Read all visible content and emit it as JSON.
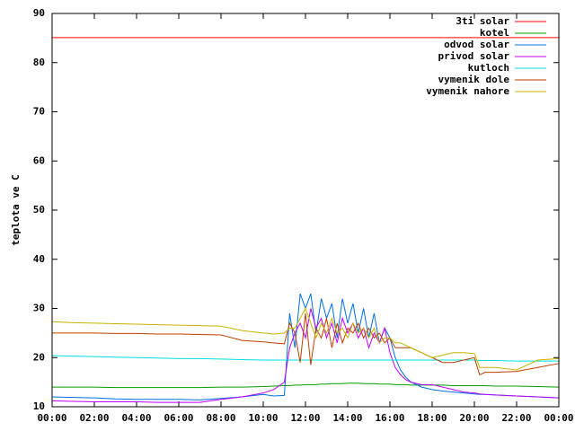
{
  "chart_data": {
    "type": "line",
    "ylabel": "teplota ve C",
    "x": [
      0,
      1,
      2,
      3,
      4,
      5,
      6,
      7,
      8,
      9,
      10,
      10.5,
      11,
      11.25,
      11.5,
      11.75,
      12,
      12.25,
      12.5,
      12.75,
      13,
      13.25,
      13.5,
      13.75,
      14,
      14.25,
      14.5,
      14.75,
      15,
      15.25,
      15.5,
      15.75,
      16,
      16.25,
      16.5,
      16.75,
      17,
      17.5,
      18,
      18.5,
      19,
      19.5,
      20,
      20.25,
      20.5,
      21,
      22,
      23,
      24
    ],
    "xlim": [
      0,
      24
    ],
    "xticks": [
      {
        "value": 0,
        "label": "00:00"
      },
      {
        "value": 2,
        "label": "02:00"
      },
      {
        "value": 4,
        "label": "04:00"
      },
      {
        "value": 6,
        "label": "06:00"
      },
      {
        "value": 8,
        "label": "08:00"
      },
      {
        "value": 10,
        "label": "10:00"
      },
      {
        "value": 12,
        "label": "12:00"
      },
      {
        "value": 14,
        "label": "14:00"
      },
      {
        "value": 16,
        "label": "16:00"
      },
      {
        "value": 18,
        "label": "18:00"
      },
      {
        "value": 20,
        "label": "20:00"
      },
      {
        "value": 22,
        "label": "22:00"
      },
      {
        "value": 24,
        "label": "00:00"
      }
    ],
    "ylim": [
      10,
      90
    ],
    "yticks": [
      10,
      20,
      30,
      40,
      50,
      60,
      70,
      80,
      90
    ],
    "legend": "top-right",
    "series": [
      {
        "name": "3ti solar",
        "color": "#ff0000",
        "values": [
          85.1,
          85.1,
          85.1,
          85.1,
          85.1,
          85.1,
          85.1,
          85.1,
          85.1,
          85.1,
          85.1,
          85.1,
          85.1,
          85.1,
          85.1,
          85.1,
          85.1,
          85.1,
          85.1,
          85.1,
          85.1,
          85.1,
          85.1,
          85.1,
          85.1,
          85.1,
          85.1,
          85.1,
          85.1,
          85.1,
          85.1,
          85.1,
          85.1,
          85.1,
          85.1,
          85.1,
          85.1,
          85.1,
          85.1,
          85.1,
          85.1,
          85.1,
          85.1,
          85.1,
          85.1,
          85.1,
          85.1,
          85.1,
          85.1
        ]
      },
      {
        "name": "kotel",
        "color": "#00a000",
        "values": [
          14,
          14,
          14,
          13.9,
          13.9,
          13.9,
          13.9,
          13.9,
          14,
          14,
          14.1,
          14.2,
          14.3,
          14.3,
          14.4,
          14.4,
          14.5,
          14.5,
          14.5,
          14.6,
          14.6,
          14.7,
          14.7,
          14.7,
          14.8,
          14.8,
          14.8,
          14.7,
          14.7,
          14.7,
          14.6,
          14.6,
          14.6,
          14.5,
          14.5,
          14.5,
          14.4,
          14.4,
          14.4,
          14.4,
          14.3,
          14.3,
          14.3,
          14.3,
          14.3,
          14.2,
          14.2,
          14.1,
          14
        ]
      },
      {
        "name": "odvod solar",
        "color": "#0070e0",
        "values": [
          12,
          11.9,
          11.8,
          11.6,
          11.5,
          11.5,
          11.5,
          11.4,
          11.7,
          12,
          12.5,
          12.2,
          12.3,
          29,
          22,
          33,
          30,
          33,
          25,
          32,
          28,
          31,
          24,
          32,
          27,
          31,
          25,
          30,
          24,
          29,
          23,
          26,
          24,
          20,
          17.5,
          16,
          15,
          14,
          13.5,
          13.2,
          13,
          12.8,
          12.6,
          12.5,
          12.5,
          12.4,
          12.2,
          12,
          11.8
        ]
      },
      {
        "name": "privod solar",
        "color": "#c000ff",
        "values": [
          11.2,
          11.1,
          11,
          11,
          11,
          10.9,
          10.9,
          10.9,
          11.5,
          12,
          12.8,
          13.5,
          15,
          22,
          25,
          27,
          24,
          30,
          26,
          28,
          24,
          27,
          23,
          28,
          25,
          27,
          24,
          26,
          22,
          25,
          23,
          26,
          21,
          18,
          16.5,
          15.5,
          15,
          14.5,
          14.5,
          14,
          13.5,
          13,
          12.8,
          12.6,
          12.5,
          12.4,
          12.2,
          12,
          11.8
        ]
      },
      {
        "name": "kutloch",
        "color": "#00e0e0",
        "values": [
          20.4,
          20.3,
          20.2,
          20.1,
          20,
          19.9,
          19.8,
          19.8,
          19.7,
          19.6,
          19.5,
          19.5,
          19.5,
          19.5,
          19.5,
          19.5,
          19.5,
          19.5,
          19.5,
          19.5,
          19.5,
          19.5,
          19.5,
          19.5,
          19.5,
          19.5,
          19.5,
          19.5,
          19.5,
          19.5,
          19.5,
          19.5,
          19.5,
          19.5,
          19.5,
          19.5,
          19.5,
          19.5,
          19.5,
          19.5,
          19.5,
          19.5,
          19.5,
          19.4,
          19.4,
          19.4,
          19.3,
          19.3,
          19.3
        ]
      },
      {
        "name": "vymenik dole",
        "color": "#c04000",
        "values": [
          25,
          25,
          25,
          24.9,
          24.9,
          24.8,
          24.8,
          24.7,
          24.6,
          23.5,
          23.2,
          23,
          22.8,
          27,
          25,
          19,
          29,
          18.5,
          26,
          24,
          28,
          22,
          27,
          23,
          26,
          25,
          27,
          24,
          26,
          24,
          25,
          23,
          24,
          22,
          22,
          22,
          22,
          21,
          20,
          19,
          19,
          19.5,
          20,
          16.5,
          17,
          17,
          17.2,
          18,
          18.8
        ]
      },
      {
        "name": "vymenik nahore",
        "color": "#c8b400",
        "values": [
          27.3,
          27.1,
          27,
          26.9,
          26.8,
          26.7,
          26.6,
          26.5,
          26.4,
          25.5,
          25,
          24.8,
          25,
          26,
          26,
          28,
          30,
          27,
          24,
          27,
          25,
          28,
          25,
          26,
          24,
          27,
          25,
          26,
          24,
          26,
          23,
          24,
          24,
          23,
          23,
          22.5,
          22,
          21,
          20,
          20.5,
          21,
          21,
          20.8,
          18,
          18,
          18,
          17.5,
          19.5,
          19.8
        ]
      }
    ]
  }
}
